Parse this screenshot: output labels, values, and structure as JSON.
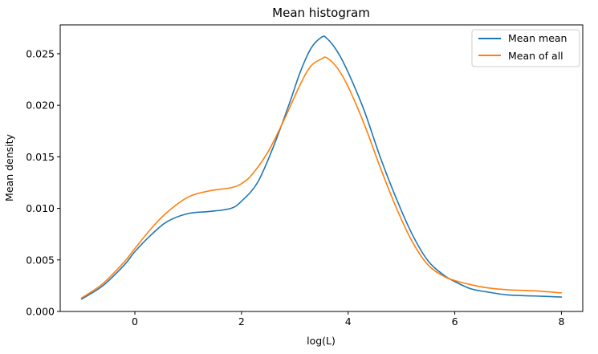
{
  "chart_data": {
    "type": "line",
    "title": "Mean histogram",
    "xlabel": "log(L)",
    "ylabel": "Mean density",
    "xlim": [
      -1.4,
      8.4
    ],
    "ylim": [
      0.0,
      0.0278
    ],
    "xticks": [
      0,
      2,
      4,
      6,
      8
    ],
    "yticks": [
      0.0,
      0.005,
      0.01,
      0.015,
      0.02,
      0.025
    ],
    "xtick_labels": [
      "0",
      "2",
      "4",
      "6",
      "8"
    ],
    "ytick_labels": [
      "0.000",
      "0.005",
      "0.010",
      "0.015",
      "0.020",
      "0.025"
    ],
    "grid": false,
    "legend_position": "top-right",
    "series": [
      {
        "name": "Mean mean",
        "color": "#1f77b4",
        "points": [
          [
            -1.0,
            0.0012
          ],
          [
            -0.6,
            0.0025
          ],
          [
            -0.2,
            0.0045
          ],
          [
            0.0,
            0.0058
          ],
          [
            0.3,
            0.0074
          ],
          [
            0.6,
            0.0087
          ],
          [
            1.0,
            0.0095
          ],
          [
            1.4,
            0.0097
          ],
          [
            1.8,
            0.01
          ],
          [
            2.0,
            0.0107
          ],
          [
            2.3,
            0.0125
          ],
          [
            2.6,
            0.016
          ],
          [
            2.9,
            0.0202
          ],
          [
            3.1,
            0.0232
          ],
          [
            3.3,
            0.0255
          ],
          [
            3.5,
            0.0266
          ],
          [
            3.6,
            0.0265
          ],
          [
            3.8,
            0.0252
          ],
          [
            4.0,
            0.0232
          ],
          [
            4.3,
            0.0195
          ],
          [
            4.6,
            0.015
          ],
          [
            4.9,
            0.011
          ],
          [
            5.2,
            0.0075
          ],
          [
            5.5,
            0.0049
          ],
          [
            5.8,
            0.0035
          ],
          [
            6.0,
            0.0029
          ],
          [
            6.3,
            0.0022
          ],
          [
            6.6,
            0.0019
          ],
          [
            7.0,
            0.0016
          ],
          [
            7.5,
            0.0015
          ],
          [
            8.0,
            0.0014
          ]
        ]
      },
      {
        "name": "Mean of all",
        "color": "#ff7f0e",
        "points": [
          [
            -1.0,
            0.0013
          ],
          [
            -0.6,
            0.0027
          ],
          [
            -0.2,
            0.0048
          ],
          [
            0.0,
            0.0061
          ],
          [
            0.3,
            0.008
          ],
          [
            0.6,
            0.0096
          ],
          [
            1.0,
            0.0111
          ],
          [
            1.4,
            0.0117
          ],
          [
            1.8,
            0.012
          ],
          [
            2.0,
            0.0124
          ],
          [
            2.2,
            0.0133
          ],
          [
            2.5,
            0.0155
          ],
          [
            2.8,
            0.0186
          ],
          [
            3.1,
            0.022
          ],
          [
            3.3,
            0.0238
          ],
          [
            3.5,
            0.0245
          ],
          [
            3.6,
            0.0246
          ],
          [
            3.8,
            0.0236
          ],
          [
            4.0,
            0.0218
          ],
          [
            4.3,
            0.0182
          ],
          [
            4.6,
            0.014
          ],
          [
            4.9,
            0.0101
          ],
          [
            5.2,
            0.0068
          ],
          [
            5.5,
            0.0045
          ],
          [
            5.8,
            0.0034
          ],
          [
            6.0,
            0.003
          ],
          [
            6.3,
            0.0026
          ],
          [
            6.6,
            0.0023
          ],
          [
            7.0,
            0.0021
          ],
          [
            7.5,
            0.002
          ],
          [
            8.0,
            0.0018
          ]
        ]
      }
    ]
  }
}
